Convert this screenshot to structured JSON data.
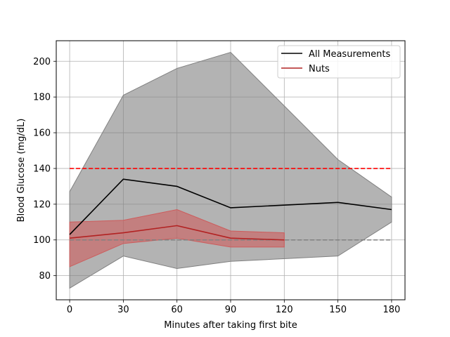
{
  "chart_data": {
    "type": "line",
    "title": "",
    "xlabel": "Minutes after taking first bite",
    "ylabel": "Blood Glucose (mg/dL)",
    "xlim": [
      -7.5,
      187.5
    ],
    "ylim": [
      66.5,
      211.5
    ],
    "x_ticks": [
      0,
      30,
      60,
      90,
      120,
      150,
      180
    ],
    "y_ticks": [
      80,
      100,
      120,
      140,
      160,
      180,
      200
    ],
    "grid": true,
    "legend_position": "top-right",
    "reference_lines": [
      {
        "y": 140,
        "color": "#ff0000",
        "style": "dashed"
      },
      {
        "y": 100,
        "color": "#808080",
        "style": "dashed"
      }
    ],
    "series": [
      {
        "name": "All Measurements",
        "color": "#000000",
        "band_color": "#808080",
        "x": [
          0,
          30,
          60,
          90,
          150,
          180
        ],
        "values": [
          103,
          134,
          130,
          118,
          121,
          117
        ],
        "upper": [
          127,
          181,
          196,
          205,
          145,
          124
        ],
        "lower": [
          73,
          91,
          84,
          88,
          91,
          110
        ]
      },
      {
        "name": "Nuts",
        "color": "#b22222",
        "band_color": "#cd5c5c",
        "x": [
          0,
          30,
          60,
          90,
          120
        ],
        "values": [
          101,
          104,
          108,
          101,
          100
        ],
        "upper": [
          110,
          111,
          117,
          105,
          104
        ],
        "lower": [
          85,
          98,
          101,
          96,
          96
        ]
      }
    ]
  }
}
